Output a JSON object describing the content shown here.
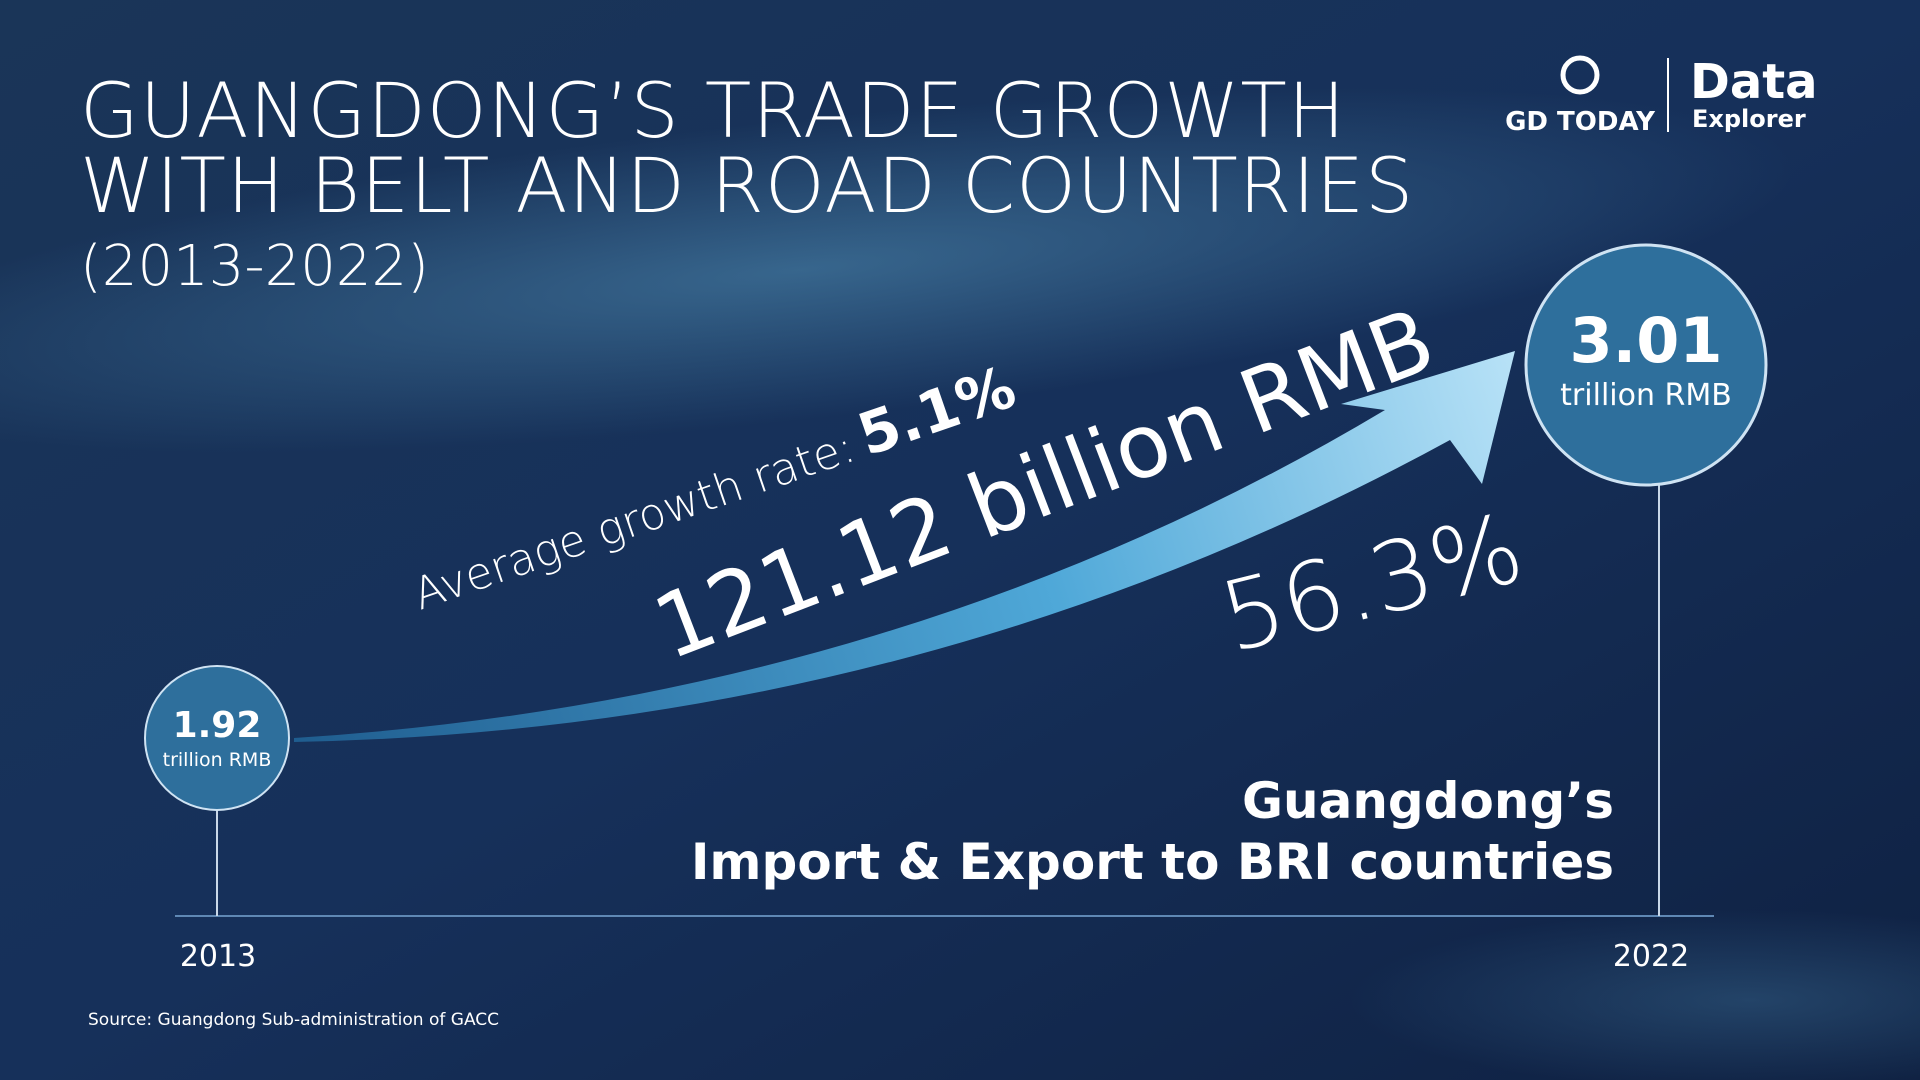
{
  "header": {
    "title_lines": [
      "GUANGDONG’S TRADE GROWTH",
      "WITH BELT AND ROAD COUNTRIES"
    ],
    "subtitle": "(2013-2022)"
  },
  "logo": {
    "brand": "GD TODAY",
    "product": "Data",
    "product_sub": "Explorer"
  },
  "start": {
    "year": "2013",
    "value": "1.92",
    "unit": "trillion RMB"
  },
  "end": {
    "year": "2022",
    "value": "3.01",
    "unit": "trillion RMB"
  },
  "growth": {
    "rate_label": "Average growth rate:",
    "rate": "5.1%",
    "increase": "121.12 billion RMB",
    "percent": "56.3%"
  },
  "caption_lines": [
    "Guangdong’s",
    "Import & Export to BRI countries"
  ],
  "source": "Source: Guangdong Sub-administration of GACC"
}
